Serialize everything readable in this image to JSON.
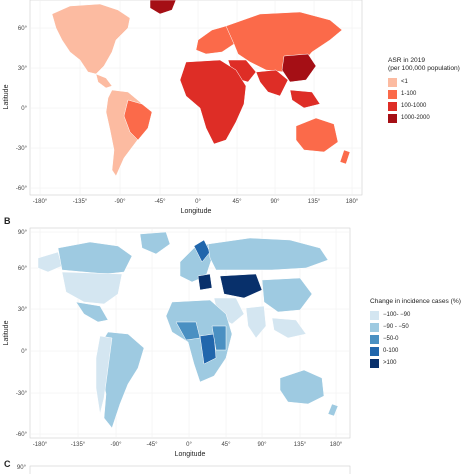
{
  "panels": [
    {
      "letter": "",
      "xlabel": "Longitude",
      "ylabel": "Latitude",
      "x_ticks": [
        "-180°",
        "-135°",
        "-90°",
        "-45°",
        "0°",
        "45°",
        "90°",
        "135°",
        "180°"
      ],
      "y_ticks": [
        "60°",
        "30°",
        "0°",
        "-30°",
        "-60°"
      ],
      "legend_title": "ASR in 2019\n(per 100,000 population)",
      "legend": [
        {
          "label": "<1",
          "color": "#fcbba1"
        },
        {
          "label": "1-100",
          "color": "#fb6a4a"
        },
        {
          "label": "100-1000",
          "color": "#de2d26"
        },
        {
          "label": "1000-2000",
          "color": "#a50f15"
        }
      ]
    },
    {
      "letter": "B",
      "xlabel": "Longitude",
      "ylabel": "Latitude",
      "x_ticks": [
        "-180°",
        "-135°",
        "-90°",
        "-45°",
        "0°",
        "45°",
        "90°",
        "135°",
        "180°"
      ],
      "y_ticks": [
        "90°",
        "60°",
        "30°",
        "0°",
        "-30°",
        "-60°"
      ],
      "legend_title": "Change in incidence cases (%)",
      "legend": [
        {
          "label": "−100- −90",
          "color": "#d4e6f1"
        },
        {
          "label": "−90 - −50",
          "color": "#9ecae1"
        },
        {
          "label": "−50-0",
          "color": "#4a90c2"
        },
        {
          "label": "0-100",
          "color": "#2166ac"
        },
        {
          "label": ">100",
          "color": "#08306b"
        }
      ]
    },
    {
      "letter": "C",
      "y_ticks": [
        "90°"
      ]
    }
  ]
}
